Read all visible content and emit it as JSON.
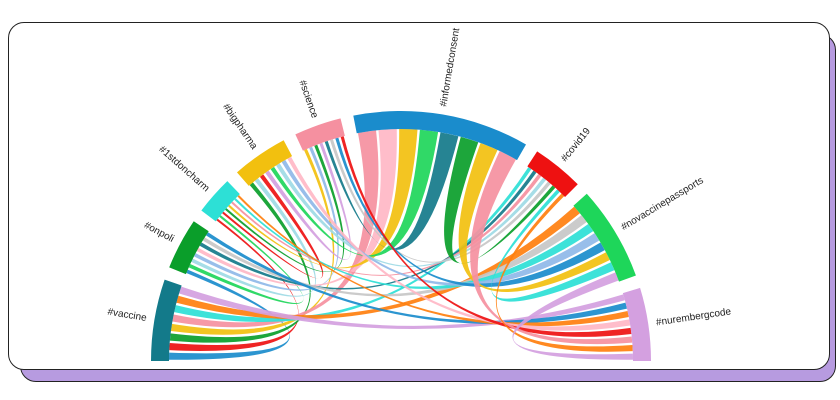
{
  "nodes": [
    {
      "label": "#vaccine",
      "color": "#137a8a"
    },
    {
      "label": "#onpoli",
      "color": "#0a9e2a"
    },
    {
      "label": "#1stdoncharm",
      "color": "#2de0d6"
    },
    {
      "label": "#bigpharma",
      "color": "#f2c00f"
    },
    {
      "label": "#science",
      "color": "#f590a0"
    },
    {
      "label": "#informedconsent",
      "color": "#1a8ccc"
    },
    {
      "label": "#covid19",
      "color": "#ee1111"
    },
    {
      "label": "#novaccinepassports",
      "color": "#1ed65a"
    },
    {
      "label": "#nurembergcode",
      "color": "#d4a0e0"
    }
  ]
}
